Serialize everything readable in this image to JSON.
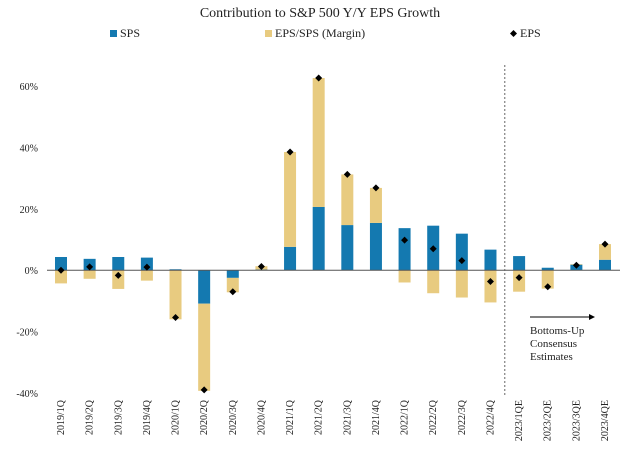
{
  "chart_data": {
    "type": "bar",
    "stacked": true,
    "title": "Contribution to S&P 500 Y/Y EPS Growth",
    "xlabel": "",
    "ylabel": "",
    "ylim": [
      -40,
      60
    ],
    "y_ticks": [
      60,
      40,
      20,
      0,
      -20,
      -40
    ],
    "y_tick_format": "%",
    "legend_position": "top",
    "categories": [
      "2019/1Q",
      "2019/2Q",
      "2019/3Q",
      "2019/4Q",
      "2020/1Q",
      "2020/2Q",
      "2020/3Q",
      "2020/4Q",
      "2021/1Q",
      "2021/2Q",
      "2021/3Q",
      "2021/4Q",
      "2022/1Q",
      "2022/2Q",
      "2022/3Q",
      "2022/4Q",
      "2023/1QE",
      "2023/2QE",
      "2023/3QE",
      "2023/4QE"
    ],
    "series": [
      {
        "name": "SPS",
        "kind": "bar",
        "color": "#1479b0",
        "values": [
          4.3,
          3.7,
          4.3,
          4.1,
          0.3,
          -10.9,
          -2.5,
          0.2,
          7.6,
          20.6,
          14.7,
          15.4,
          13.7,
          14.5,
          11.9,
          6.7,
          4.6,
          0.8,
          1.8,
          3.4
        ]
      },
      {
        "name": "EPS/SPS (Margin)",
        "kind": "bar",
        "color": "#e8cb80",
        "values": [
          -4.3,
          -2.8,
          -6.1,
          -3.4,
          -16.0,
          -28.4,
          -4.7,
          1.1,
          30.9,
          42.0,
          16.5,
          11.4,
          -4.0,
          -7.5,
          -8.9,
          -10.5,
          -7.0,
          -6.0,
          0.2,
          5.1
        ]
      },
      {
        "name": "EPS",
        "kind": "marker",
        "color": "#000000",
        "values": [
          0.0,
          1.1,
          -1.7,
          1.0,
          -15.4,
          -39.0,
          -7.0,
          1.2,
          38.5,
          62.6,
          31.2,
          26.8,
          9.8,
          7.0,
          3.1,
          -3.7,
          -2.4,
          -5.4,
          1.6,
          8.5
        ]
      }
    ],
    "annotation": {
      "text_lines": [
        "Bottoms-Up",
        "Consensus",
        "Estimates"
      ],
      "divider_before_category": "2023/1QE"
    }
  }
}
